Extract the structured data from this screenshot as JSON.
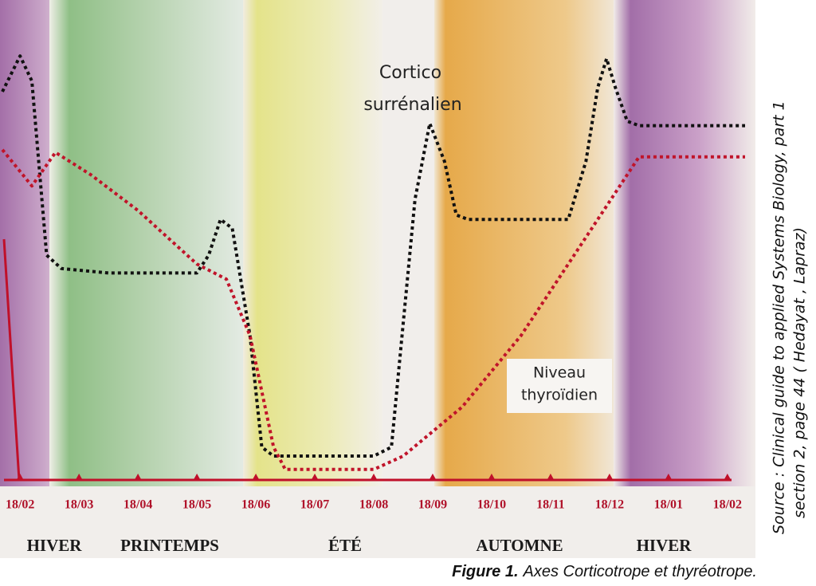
{
  "chart_data": {
    "type": "line",
    "annotations": [
      "Cortico",
      "surrénalien",
      "Niveau",
      "thyroïdien"
    ],
    "seasons": [
      "HIVER",
      "PRINTEMPS",
      "ÉTÉ",
      "AUTOMNE",
      "HIVER"
    ],
    "caption_label": "Figure 1.",
    "caption": "Axes Corticotrope et thyréotrope.",
    "source": [
      "Source : Clinical guide to applied Systems Biology, part 1",
      "section 2, page 44 ( Hedayat , Lapraz)"
    ],
    "xlim": [
      -0.3,
      12.3
    ],
    "xticks": [
      {
        "value": 0,
        "label": "18/02"
      },
      {
        "value": 1,
        "label": "18/03"
      },
      {
        "value": 2,
        "label": "18/04"
      },
      {
        "value": 3,
        "label": "18/05"
      },
      {
        "value": 4,
        "label": "18/06"
      },
      {
        "value": 5,
        "label": "18/07"
      },
      {
        "value": 6,
        "label": "18/08"
      },
      {
        "value": 7,
        "label": "18/09"
      },
      {
        "value": 8,
        "label": "18/10"
      },
      {
        "value": 9,
        "label": "18/11"
      },
      {
        "value": 10,
        "label": "18/12"
      },
      {
        "value": 11,
        "label": "18/01"
      },
      {
        "value": 12,
        "label": "18/02"
      }
    ],
    "ylim": [
      0,
      100
    ],
    "series": [
      {
        "color": "#111111",
        "x": [
          -0.3,
          0,
          0.2,
          0.45,
          0.7,
          1.5,
          3.0,
          3.2,
          3.4,
          3.6,
          3.9,
          4.1,
          4.3,
          6.0,
          6.3,
          6.7,
          6.95,
          7.2,
          7.4,
          7.6,
          9.3,
          9.6,
          9.8,
          9.95,
          10.1,
          10.3,
          10.5,
          12.3
        ],
        "values": [
          86.6,
          94.6,
          89,
          50,
          47,
          46,
          46,
          50,
          58,
          56,
          32,
          7,
          5,
          5,
          7,
          62.5,
          79.5,
          71,
          59,
          58,
          58,
          71,
          87.5,
          94,
          87.5,
          80,
          79,
          79
        ]
      },
      {
        "color": "#c0142a",
        "x": [
          -0.3,
          0.2,
          0.6,
          1.2,
          2,
          3,
          3.5,
          3.9,
          4.3,
          4.5,
          6.0,
          6.5,
          7.5,
          8.5,
          9.5,
          10.3,
          10.5,
          12.3
        ],
        "values": [
          73.6,
          65.5,
          73,
          68,
          60,
          48,
          44.6,
          32,
          7,
          2,
          2,
          5,
          16,
          32,
          52,
          68,
          72,
          72
        ]
      }
    ]
  }
}
